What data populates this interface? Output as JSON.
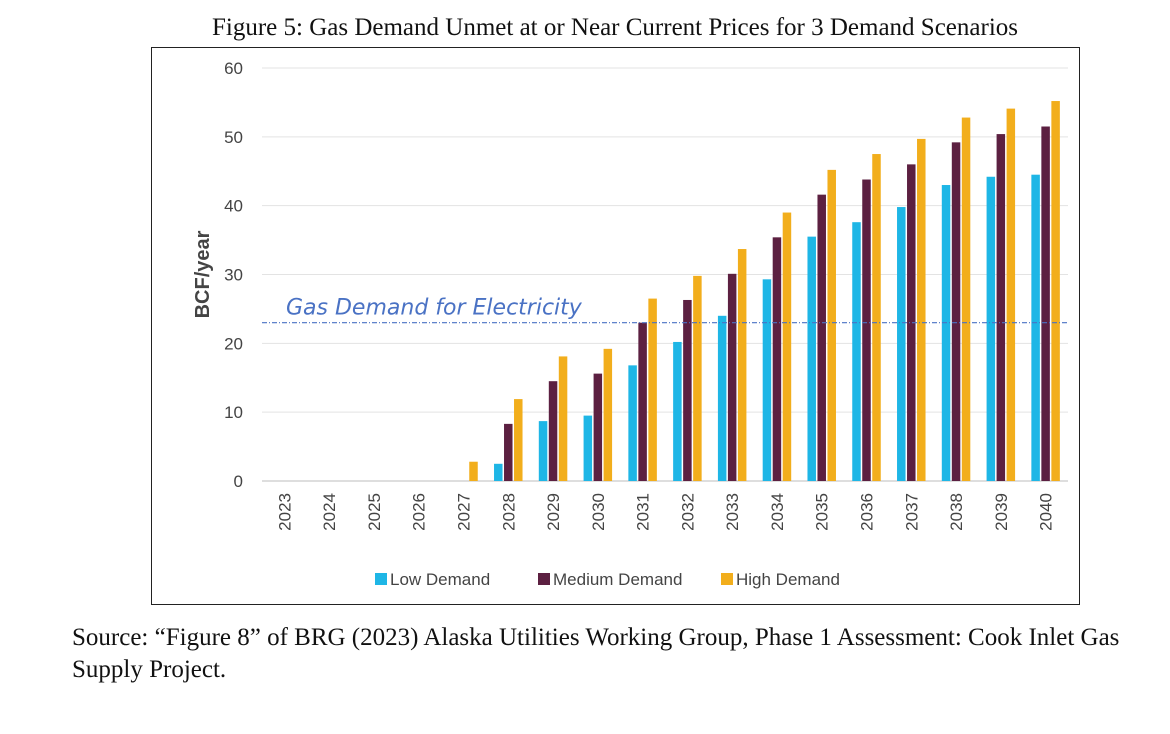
{
  "figure_title": "Figure 5: Gas Demand Unmet at or Near Current Prices for 3 Demand Scenarios",
  "source": "Source: “Figure 8” of BRG (2023) Alaska Utilities Working Group, Phase 1 Assessment: Cook Inlet Gas Supply Project.",
  "chart_data": {
    "type": "bar",
    "title": "",
    "xlabel": "",
    "ylabel": "BCF/year",
    "ylim": [
      0,
      60
    ],
    "yticks": [
      0,
      10,
      20,
      30,
      40,
      50,
      60
    ],
    "grid": true,
    "legend_position": "bottom",
    "categories": [
      "2023",
      "2024",
      "2025",
      "2026",
      "2027",
      "2028",
      "2029",
      "2030",
      "2031",
      "2032",
      "2033",
      "2034",
      "2035",
      "2036",
      "2037",
      "2038",
      "2039",
      "2040"
    ],
    "series": [
      {
        "name": "Low Demand",
        "color": "#1EB6E6",
        "values": [
          0,
          0,
          0,
          0,
          0,
          2.5,
          8.7,
          9.5,
          16.8,
          20.2,
          24,
          29.3,
          35.5,
          37.6,
          39.8,
          43,
          44.2,
          44.5
        ]
      },
      {
        "name": "Medium Demand",
        "color": "#5C2041",
        "values": [
          0,
          0,
          0,
          0,
          0,
          8.3,
          14.5,
          15.6,
          23,
          26.3,
          30.1,
          35.4,
          41.6,
          43.8,
          46,
          49.2,
          50.4,
          51.5
        ]
      },
      {
        "name": "High Demand",
        "color": "#F2AE1C",
        "values": [
          0,
          0,
          0,
          0,
          2.8,
          11.9,
          18.1,
          19.2,
          26.5,
          29.8,
          33.7,
          39,
          45.2,
          47.5,
          49.7,
          52.8,
          54.1,
          55.2
        ]
      }
    ],
    "annotation": {
      "text": "Gas Demand for Electricity",
      "value": 23,
      "color": "#4A72C4"
    }
  }
}
